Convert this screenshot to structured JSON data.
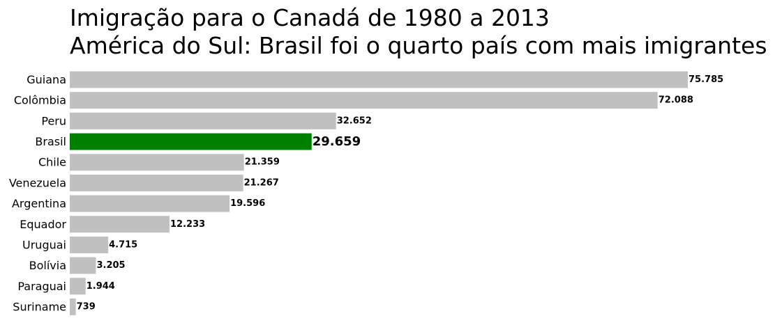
{
  "chart_data": {
    "type": "bar",
    "orientation": "horizontal",
    "title_lines": [
      "Imigração para o Canadá de 1980 a 2013",
      "América do Sul: Brasil foi o quarto país com mais imigrantes"
    ],
    "xlabel": "",
    "ylabel": "",
    "categories": [
      "Guiana",
      "Colômbia",
      "Peru",
      "Brasil",
      "Chile",
      "Venezuela",
      "Argentina",
      "Equador",
      "Uruguai",
      "Bolívia",
      "Paraguai",
      "Suriname"
    ],
    "values": [
      75785,
      72088,
      32652,
      29659,
      21359,
      21267,
      19596,
      12233,
      4715,
      3205,
      1944,
      739
    ],
    "value_labels": [
      "75.785",
      "72.088",
      "32.652",
      "29.659",
      "21.359",
      "21.267",
      "19.596",
      "12.233",
      "4.715",
      "3.205",
      "1.944",
      "739"
    ],
    "highlight_category": "Brasil",
    "xlim": [
      0,
      75785
    ],
    "grid": false,
    "x_axis_visible": false,
    "colors": {
      "default_bar": "#c0c0c0",
      "highlight_bar": "#008000",
      "default_label": "#000000",
      "highlight_label": "#008000"
    }
  }
}
